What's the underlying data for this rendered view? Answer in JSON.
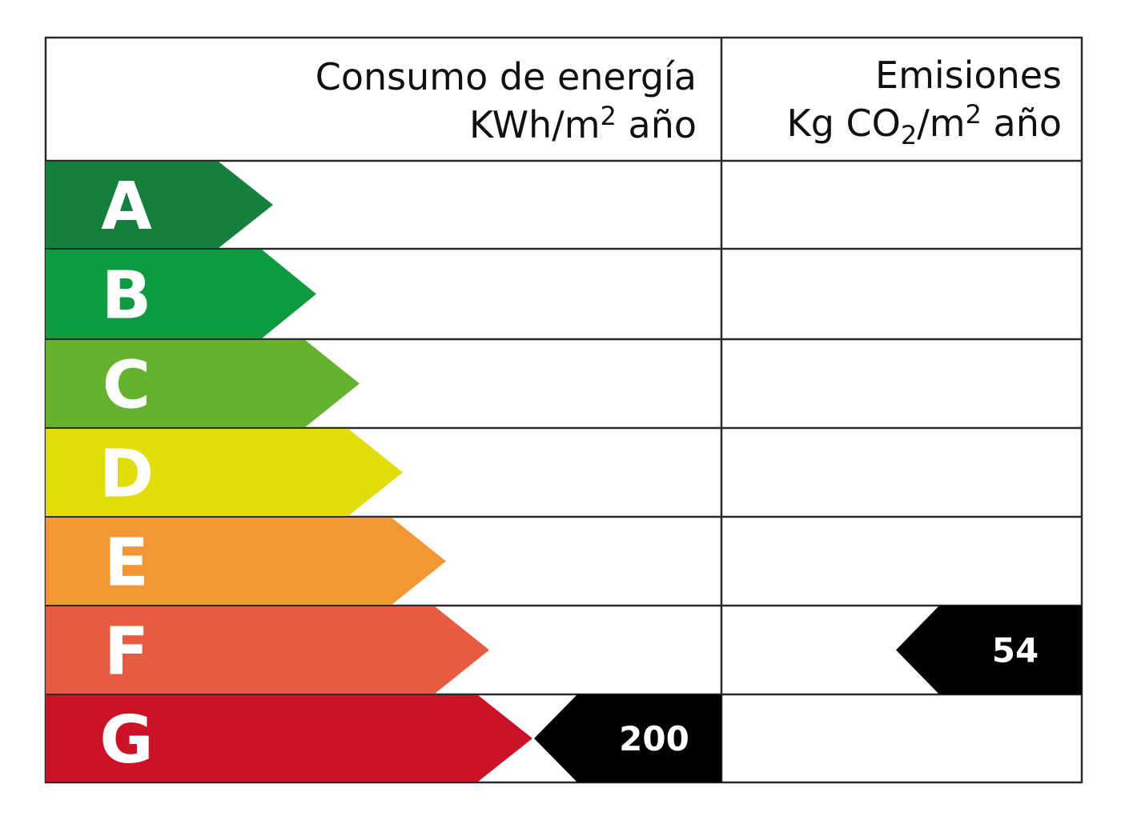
{
  "header": {
    "consumo_line1": "Consumo de energía",
    "consumo_line2_unit": "KWh/m",
    "consumo_line2_sup": "2",
    "consumo_line2_tail": " año",
    "emisiones_line1": "Emisiones",
    "emisiones_line2_a": "Kg CO",
    "emisiones_line2_sub": "2",
    "emisiones_line2_b": "/m",
    "emisiones_line2_sup": "2",
    "emisiones_line2_tail": " año"
  },
  "ratings": [
    {
      "letter": "A",
      "color": "#177f3e"
    },
    {
      "letter": "B",
      "color": "#0e9b3f"
    },
    {
      "letter": "C",
      "color": "#66b22e"
    },
    {
      "letter": "D",
      "color": "#e3dc0b"
    },
    {
      "letter": "E",
      "color": "#f29733"
    },
    {
      "letter": "F",
      "color": "#e95b40"
    },
    {
      "letter": "G",
      "color": "#cd1127"
    }
  ],
  "consumo": {
    "rating": "G",
    "value": "200"
  },
  "emisiones": {
    "rating": "F",
    "value": "54"
  },
  "colors": {
    "marker": "#000000",
    "border": "#2a2a2a"
  }
}
